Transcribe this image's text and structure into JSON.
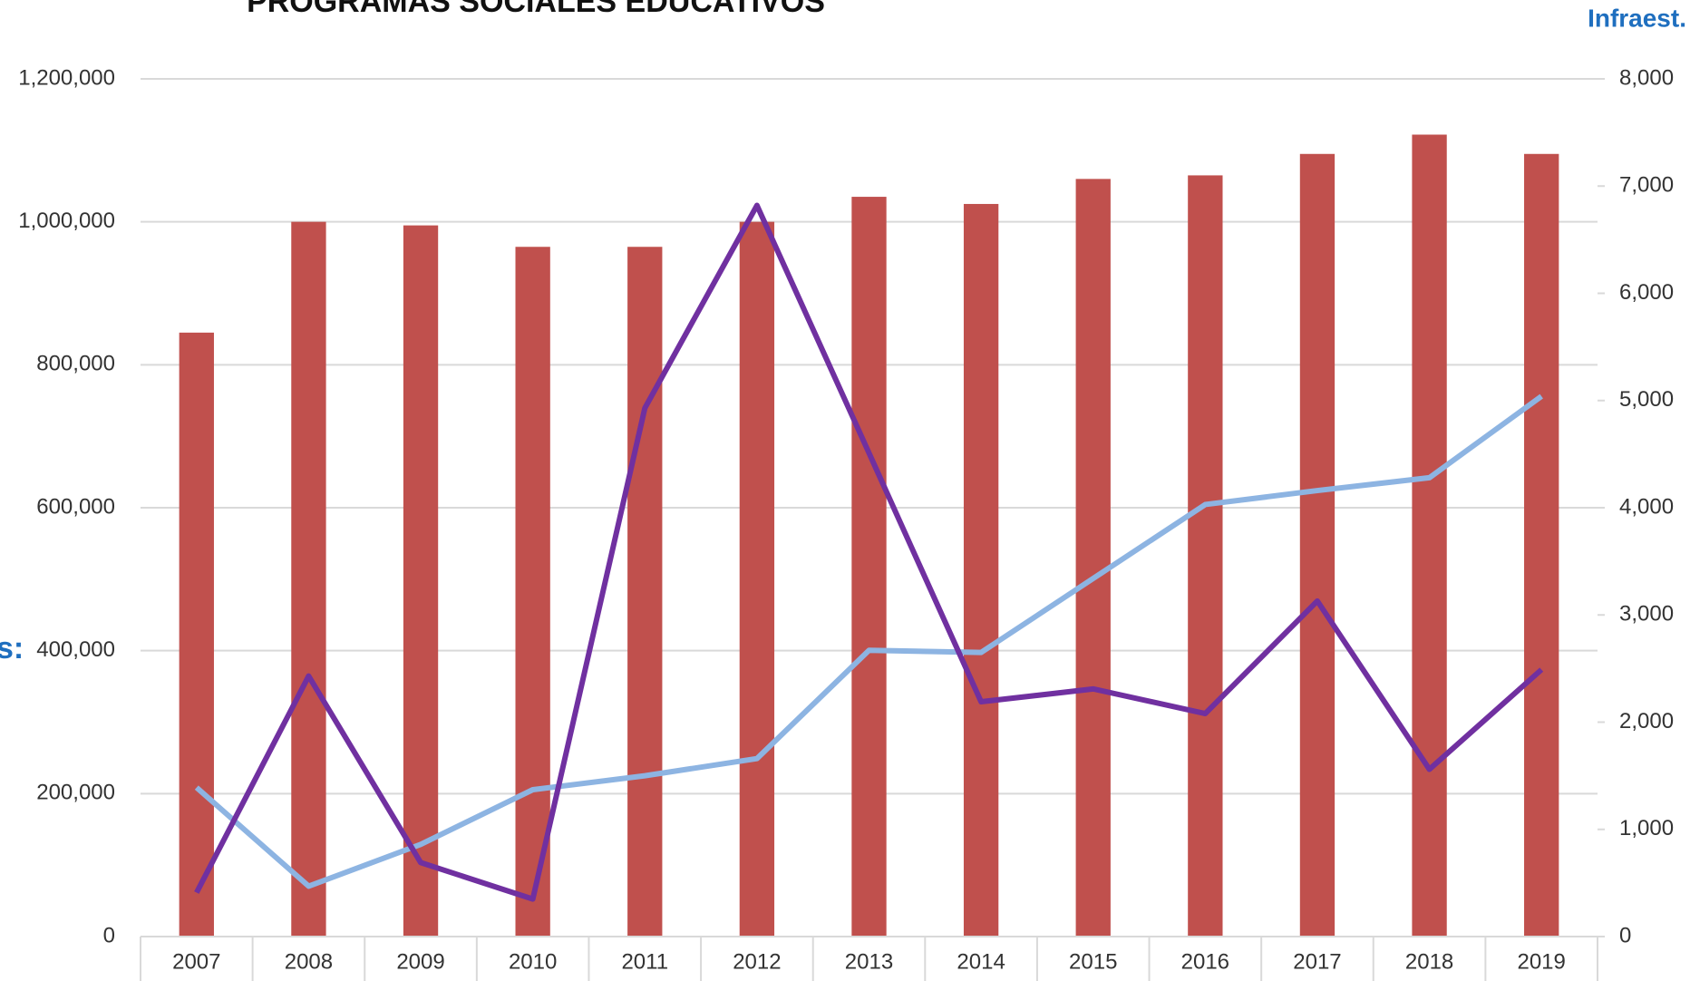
{
  "chart_data": {
    "type": "bar_line",
    "title": "PROGRAMAS SOCIALES EDUCATIVOS",
    "annotations": [
      "Infraest.",
      "s:"
    ],
    "categories": [
      "2007",
      "2008",
      "2009",
      "2010",
      "2011",
      "2012",
      "2013",
      "2014",
      "2015",
      "2016",
      "2017",
      "2018",
      "2019"
    ],
    "series": [
      {
        "type": "bar",
        "color": "#c0504d",
        "values": [
          845000,
          1000000,
          995000,
          965000,
          965000,
          1000000,
          1035000,
          1025000,
          1060000,
          1065000,
          1095000,
          1122000,
          1095000
        ]
      },
      {
        "type": "line",
        "axis": "y2",
        "color": "#8db4e2",
        "values": [
          1390,
          470,
          860,
          1370,
          1500,
          1660,
          2670,
          2650,
          3340,
          4030,
          4160,
          4280,
          5040
        ]
      },
      {
        "type": "line",
        "axis": "y2",
        "color": "#7030a0",
        "values": [
          410,
          2430,
          690,
          350,
          4930,
          6820,
          4510,
          2190,
          2310,
          2080,
          3130,
          1560,
          2490
        ]
      }
    ],
    "ylim": [
      0,
      1200000
    ],
    "yticks": [
      0,
      {
        "value": 200000,
        "label": "200,000"
      },
      {
        "value": 400000,
        "label": "400,000"
      },
      {
        "value": 600000,
        "label": "600,000"
      },
      {
        "value": 800000,
        "label": "800,000"
      },
      {
        "value": 1000000,
        "label": "1,000,000"
      },
      {
        "value": 1200000,
        "label": "1,200,000"
      }
    ],
    "y2lim": [
      0,
      8000
    ],
    "y2ticks": [
      0,
      {
        "value": 1000,
        "label": "1,000"
      },
      {
        "value": 2000,
        "label": "2,000"
      },
      {
        "value": 3000,
        "label": "3,000"
      },
      {
        "value": 4000,
        "label": "4,000"
      },
      {
        "value": 5000,
        "label": "5,000"
      },
      {
        "value": 6000,
        "label": "6,000"
      },
      {
        "value": 7000,
        "label": "7,000"
      },
      {
        "value": 8000,
        "label": "8,000"
      }
    ],
    "grid": true
  }
}
